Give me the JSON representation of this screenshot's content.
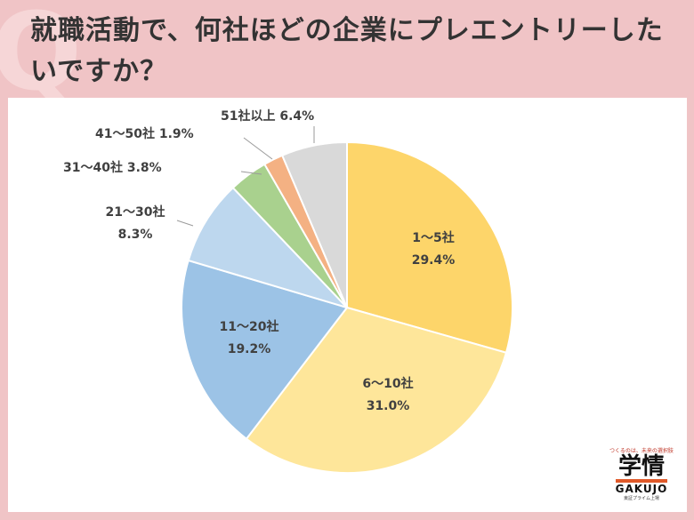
{
  "title": "就職活動で、何社ほどの企業にプレエントリーしたいですか？",
  "chart_data": {
    "type": "pie",
    "title": "就職活動で、何社ほどの企業にプレエントリーしたいですか？",
    "slices": [
      {
        "label": "1～5社",
        "value": 29.4,
        "value_text": "29.4%",
        "color": "#fdd56a",
        "label_style": "inside"
      },
      {
        "label": "6～10社",
        "value": 31.0,
        "value_text": "31.0%",
        "color": "#fee69a",
        "label_style": "inside"
      },
      {
        "label": "11～20社",
        "value": 19.2,
        "value_text": "19.2%",
        "color": "#9cc3e6",
        "label_style": "inside"
      },
      {
        "label": "21～30社",
        "value": 8.3,
        "value_text": "8.3%",
        "color": "#bdd7ee",
        "label_style": "outside-two-line"
      },
      {
        "label": "31～40社",
        "value": 3.8,
        "value_text": "3.8%",
        "color": "#a9d18e",
        "label_style": "outside-one-line"
      },
      {
        "label": "41～50社",
        "value": 1.9,
        "value_text": "1.9%",
        "color": "#f4b183",
        "label_style": "outside-one-line"
      },
      {
        "label": "51社以上",
        "value": 6.4,
        "value_text": "6.4%",
        "color": "#d9d9d9",
        "label_style": "outside-one-line"
      }
    ],
    "start": "12 o'clock",
    "direction": "clockwise"
  },
  "logo": {
    "tagline": "つくるのは、未来の選択肢",
    "mark": "学情",
    "name_en": "GAKUJO",
    "sub": "東証プライム上場"
  }
}
